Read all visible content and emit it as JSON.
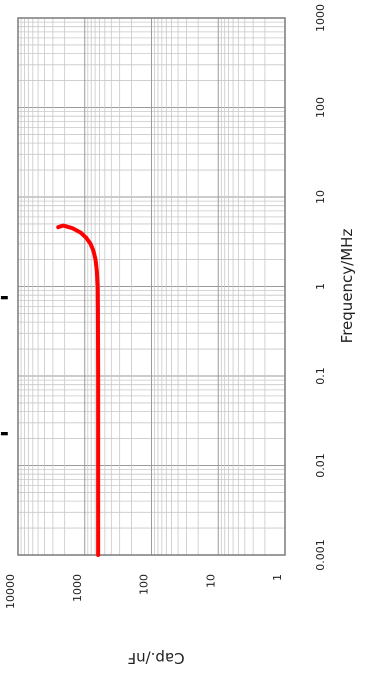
{
  "chart_data": {
    "type": "line",
    "orientation": "rotated-90-clockwise",
    "xlabel": "Frequency/MHz",
    "ylabel": "Cap./nF",
    "x_scale": "log",
    "y_scale": "log",
    "xlim": [
      0.001,
      1000
    ],
    "ylim": [
      1,
      10000
    ],
    "x_ticks": [
      "0.001",
      "0.01",
      "0.1",
      "1",
      "10",
      "100",
      "1000"
    ],
    "y_ticks": [
      "1",
      "10",
      "100",
      "1000",
      "10000"
    ],
    "grid": true,
    "series": [
      {
        "color": "#ff0000",
        "points": [
          {
            "x": 0.001,
            "y": 630
          },
          {
            "x": 0.01,
            "y": 630
          },
          {
            "x": 0.1,
            "y": 630
          },
          {
            "x": 0.5,
            "y": 635
          },
          {
            "x": 1,
            "y": 640
          },
          {
            "x": 1.5,
            "y": 660
          },
          {
            "x": 2,
            "y": 690
          },
          {
            "x": 2.5,
            "y": 740
          },
          {
            "x": 3,
            "y": 820
          },
          {
            "x": 3.5,
            "y": 950
          },
          {
            "x": 4,
            "y": 1150
          },
          {
            "x": 4.5,
            "y": 1550
          },
          {
            "x": 4.8,
            "y": 2100
          },
          {
            "x": 4.6,
            "y": 2500
          }
        ]
      }
    ]
  },
  "markers": [
    "▬",
    "▬"
  ]
}
